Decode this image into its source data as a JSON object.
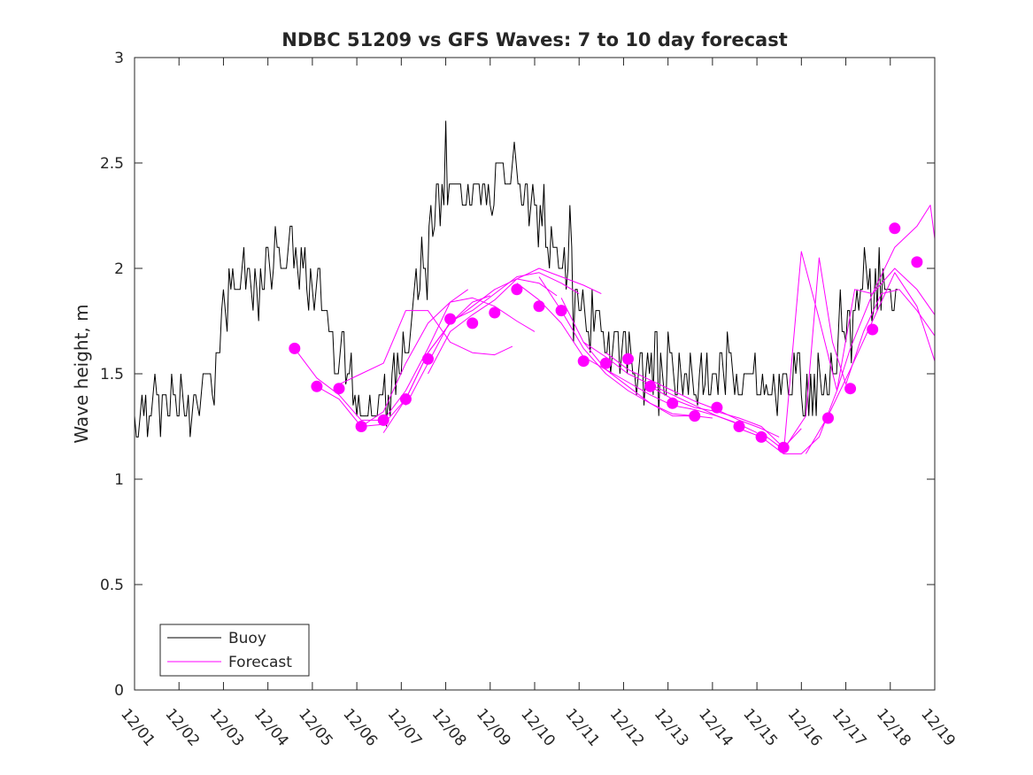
{
  "colors": {
    "buoy": "#000000",
    "forecast": "#ff00ff",
    "axis": "#262626"
  },
  "chart_data": {
    "type": "line",
    "title": "NDBC 51209 vs GFS Waves: 7 to 10 day forecast",
    "xlabel": "",
    "ylabel": "Wave height, m",
    "xlim": [
      1,
      19
    ],
    "ylim": [
      0,
      3
    ],
    "yticks": [
      0,
      0.5,
      1,
      1.5,
      2,
      2.5,
      3
    ],
    "ytick_labels": [
      "0",
      "0.5",
      "1",
      "1.5",
      "2",
      "2.5",
      "3"
    ],
    "xticks": [
      1,
      2,
      3,
      4,
      5,
      6,
      7,
      8,
      9,
      10,
      11,
      12,
      13,
      14,
      15,
      16,
      17,
      18,
      19
    ],
    "xtick_labels": [
      "12/01",
      "12/02",
      "12/03",
      "12/04",
      "12/05",
      "12/06",
      "12/07",
      "12/08",
      "12/09",
      "12/10",
      "12/11",
      "12/12",
      "12/13",
      "12/14",
      "12/15",
      "12/16",
      "12/17",
      "12/18",
      "12/19"
    ],
    "legend": {
      "position": "bottom-left",
      "entries": [
        "Buoy",
        "Forecast"
      ]
    },
    "series": [
      {
        "name": "Buoy",
        "x": [
          1.0,
          1.25,
          1.5,
          1.75,
          2.0,
          2.25,
          2.5,
          2.75,
          3.0,
          3.25,
          3.5,
          3.75,
          4.0,
          4.25,
          4.5,
          4.75,
          5.0,
          5.25,
          5.5,
          5.75,
          6.0,
          6.25,
          6.5,
          6.75,
          7.0,
          7.25,
          7.5,
          7.75,
          8.0,
          8.25,
          8.5,
          8.75,
          9.0,
          9.25,
          9.5,
          9.75,
          10.0,
          10.25,
          10.5,
          10.75,
          11.0,
          11.25,
          11.5,
          11.75,
          12.0,
          12.25,
          12.5,
          12.75,
          13.0,
          13.25,
          13.5,
          13.75,
          14.0,
          14.25,
          14.5,
          14.75,
          15.0,
          15.25,
          15.5,
          15.75,
          16.0,
          16.25,
          16.5,
          16.75,
          17.0,
          17.25,
          17.5,
          17.75,
          18.0,
          18.2
        ],
        "y": [
          1.3,
          1.35,
          1.35,
          1.35,
          1.4,
          1.35,
          1.4,
          1.5,
          1.8,
          1.95,
          1.95,
          1.9,
          2.0,
          2.05,
          2.1,
          2.0,
          1.9,
          1.85,
          1.65,
          1.55,
          1.4,
          1.35,
          1.35,
          1.4,
          1.6,
          1.85,
          2.05,
          2.3,
          2.35,
          2.35,
          2.4,
          2.35,
          2.35,
          2.4,
          2.55,
          2.35,
          2.25,
          2.1,
          2.1,
          2.0,
          1.85,
          1.75,
          1.7,
          1.65,
          1.6,
          1.55,
          1.5,
          1.45,
          1.45,
          1.45,
          1.5,
          1.5,
          1.45,
          1.5,
          1.55,
          1.45,
          1.5,
          1.45,
          1.45,
          1.5,
          1.45,
          1.4,
          1.45,
          1.55,
          1.7,
          1.85,
          1.95,
          1.95,
          1.9,
          1.85
        ]
      },
      {
        "name": "Forecast",
        "runs": [
          {
            "x": [
              4.6,
              5.1,
              5.6,
              6.1,
              6.6,
              7.1,
              7.6,
              8.1,
              8.5
            ],
            "y": [
              1.62,
              1.48,
              1.4,
              1.28,
              1.28,
              1.42,
              1.62,
              1.84,
              1.9
            ]
          },
          {
            "x": [
              5.1,
              5.6,
              6.1,
              6.6,
              7.1,
              7.6,
              8.1,
              8.6,
              9.0
            ],
            "y": [
              1.44,
              1.38,
              1.25,
              1.26,
              1.38,
              1.6,
              1.74,
              1.84,
              1.87
            ]
          },
          {
            "x": [
              5.6,
              6.1,
              6.6,
              7.1,
              7.6,
              8.1,
              8.6,
              9.1,
              9.5
            ],
            "y": [
              1.45,
              1.5,
              1.55,
              1.8,
              1.8,
              1.65,
              1.6,
              1.59,
              1.63
            ]
          },
          {
            "x": [
              6.1,
              6.6,
              7.1,
              7.6,
              8.1,
              8.6,
              9.1,
              9.6,
              10.0
            ],
            "y": [
              1.25,
              1.32,
              1.55,
              1.74,
              1.84,
              1.86,
              1.82,
              1.75,
              1.7
            ]
          },
          {
            "x": [
              6.6,
              7.1,
              7.6,
              8.1,
              8.6,
              9.1,
              9.6,
              10.1,
              10.5
            ],
            "y": [
              1.22,
              1.38,
              1.6,
              1.74,
              1.82,
              1.9,
              1.95,
              1.93,
              1.87
            ]
          },
          {
            "x": [
              7.1,
              7.6,
              8.1,
              8.6,
              9.1,
              9.6,
              10.1,
              10.6,
              11.0
            ],
            "y": [
              1.35,
              1.55,
              1.75,
              1.8,
              1.88,
              1.96,
              1.98,
              1.93,
              1.88
            ]
          },
          {
            "x": [
              7.6,
              8.1,
              8.6,
              9.1,
              9.6,
              10.1,
              10.6,
              11.1,
              11.5
            ],
            "y": [
              1.5,
              1.7,
              1.78,
              1.85,
              1.95,
              2.0,
              1.96,
              1.92,
              1.88
            ]
          },
          {
            "x": [
              9.6,
              10.1,
              10.6,
              11.1,
              11.6,
              12.1,
              12.6,
              13.1,
              13.5
            ],
            "y": [
              1.93,
              1.85,
              1.74,
              1.58,
              1.52,
              1.44,
              1.36,
              1.3,
              1.3
            ]
          },
          {
            "x": [
              10.1,
              10.6,
              11.1,
              11.6,
              12.1,
              12.6,
              13.1,
              13.6,
              14.0
            ],
            "y": [
              1.96,
              1.8,
              1.62,
              1.5,
              1.42,
              1.36,
              1.31,
              1.3,
              1.29
            ]
          },
          {
            "x": [
              10.6,
              11.1,
              11.6,
              12.1,
              12.6,
              13.1,
              13.6,
              14.1,
              14.5
            ],
            "y": [
              1.86,
              1.65,
              1.52,
              1.46,
              1.4,
              1.35,
              1.33,
              1.3,
              1.27
            ]
          },
          {
            "x": [
              11.1,
              11.6,
              12.1,
              12.6,
              13.1,
              13.6,
              14.1,
              14.6,
              15.0
            ],
            "y": [
              1.65,
              1.58,
              1.5,
              1.45,
              1.4,
              1.35,
              1.3,
              1.26,
              1.22
            ]
          },
          {
            "x": [
              11.6,
              12.1,
              12.6,
              13.1,
              13.6,
              14.1,
              14.6,
              15.1,
              15.5
            ],
            "y": [
              1.6,
              1.52,
              1.47,
              1.42,
              1.37,
              1.33,
              1.28,
              1.24,
              1.2
            ]
          },
          {
            "x": [
              12.6,
              13.1,
              13.6,
              14.1,
              14.6,
              15.1,
              15.6,
              16.0
            ],
            "y": [
              1.44,
              1.38,
              1.34,
              1.32,
              1.29,
              1.25,
              1.15,
              1.24
            ]
          },
          {
            "x": [
              14.6,
              15.1,
              15.6,
              16.0,
              16.4,
              16.8,
              17.2,
              17.6,
              18.1,
              18.6,
              19.0
            ],
            "y": [
              1.24,
              1.2,
              1.12,
              2.08,
              1.76,
              1.42,
              1.9,
              1.88,
              2.0,
              1.9,
              1.78
            ]
          },
          {
            "x": [
              15.1,
              15.6,
              16.1,
              16.4,
              16.7,
              17.0,
              17.4,
              17.8,
              18.2,
              18.6,
              19.0
            ],
            "y": [
              1.22,
              1.14,
              1.3,
              2.05,
              1.65,
              1.45,
              1.7,
              1.88,
              1.9,
              1.8,
              1.68
            ]
          },
          {
            "x": [
              15.6,
              16.0,
              16.4,
              16.8,
              17.1,
              17.6,
              18.1,
              18.6,
              18.9,
              19.0
            ],
            "y": [
              1.12,
              1.12,
              1.2,
              1.42,
              1.62,
              1.88,
              2.1,
              2.2,
              2.3,
              2.14
            ]
          },
          {
            "x": [
              16.1,
              16.6,
              17.1,
              17.6,
              18.1,
              18.6,
              19.0
            ],
            "y": [
              1.12,
              1.3,
              1.52,
              1.75,
              1.98,
              1.82,
              1.56
            ]
          }
        ],
        "points": {
          "x": [
            4.6,
            5.1,
            5.6,
            6.1,
            6.6,
            7.1,
            7.6,
            8.1,
            8.6,
            9.1,
            9.6,
            10.1,
            10.6,
            11.1,
            11.6,
            12.1,
            12.6,
            13.1,
            13.6,
            14.1,
            14.6,
            15.1,
            15.6,
            16.6,
            17.1,
            17.6,
            18.1,
            18.6
          ],
          "y": [
            1.62,
            1.44,
            1.43,
            1.25,
            1.28,
            1.38,
            1.57,
            1.76,
            1.74,
            1.79,
            1.9,
            1.82,
            1.8,
            1.56,
            1.55,
            1.57,
            1.44,
            1.36,
            1.3,
            1.34,
            1.25,
            1.2,
            1.15,
            1.29,
            1.43,
            1.71,
            2.19,
            2.03
          ]
        }
      }
    ]
  }
}
